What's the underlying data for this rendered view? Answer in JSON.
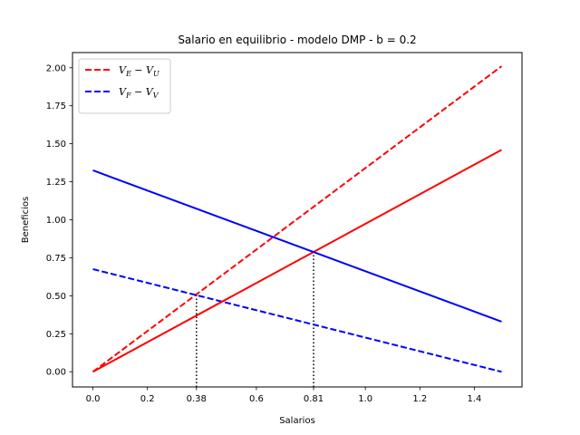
{
  "chart_data": {
    "type": "line",
    "title": "Salario en equilibrio - modelo DMP - b = 0.2",
    "xlabel": "Salarios",
    "ylabel": "Beneficios",
    "xlim": [
      -0.075,
      1.575
    ],
    "ylim": [
      -0.1,
      2.1
    ],
    "xticks": [
      0.0,
      0.2,
      0.38,
      0.6,
      0.81,
      1.0,
      1.2,
      1.4
    ],
    "xtick_labels": [
      "0.0",
      "0.2",
      "0.38",
      "0.6",
      "0.81",
      "1.0",
      "1.2",
      "1.4"
    ],
    "yticks": [
      0.0,
      0.25,
      0.5,
      0.75,
      1.0,
      1.25,
      1.5,
      1.75,
      2.0
    ],
    "ytick_labels": [
      "0.00",
      "0.25",
      "0.50",
      "0.75",
      "1.00",
      "1.25",
      "1.50",
      "1.75",
      "2.00"
    ],
    "legend_position": "top-left",
    "grid": false,
    "series": [
      {
        "name": "V_E - V_U",
        "legend_main": "V",
        "legend_sub1": "E",
        "legend_sub2": "U",
        "legend": true,
        "color": "#ff0000",
        "dash": "dashed",
        "x": [
          0.0,
          1.5
        ],
        "y": [
          0.0,
          2.01
        ]
      },
      {
        "name": "V_F - V_V",
        "legend_main": "V",
        "legend_sub1": "F",
        "legend_sub2": "V",
        "legend": true,
        "color": "#0000ff",
        "dash": "dashed",
        "x": [
          0.0,
          1.5
        ],
        "y": [
          0.675,
          0.0
        ]
      },
      {
        "color": "#ff0000",
        "dash": "solid",
        "legend": false,
        "x": [
          0.0,
          1.5
        ],
        "y": [
          0.0,
          1.46
        ]
      },
      {
        "color": "#0000ff",
        "dash": "solid",
        "legend": false,
        "x": [
          0.0,
          1.5
        ],
        "y": [
          1.325,
          0.33
        ]
      }
    ],
    "vlines": [
      {
        "x": 0.38,
        "y": 0.507,
        "color": "#000000",
        "style": "dotted"
      },
      {
        "x": 0.81,
        "y": 0.79,
        "color": "#000000",
        "style": "dotted"
      }
    ]
  }
}
